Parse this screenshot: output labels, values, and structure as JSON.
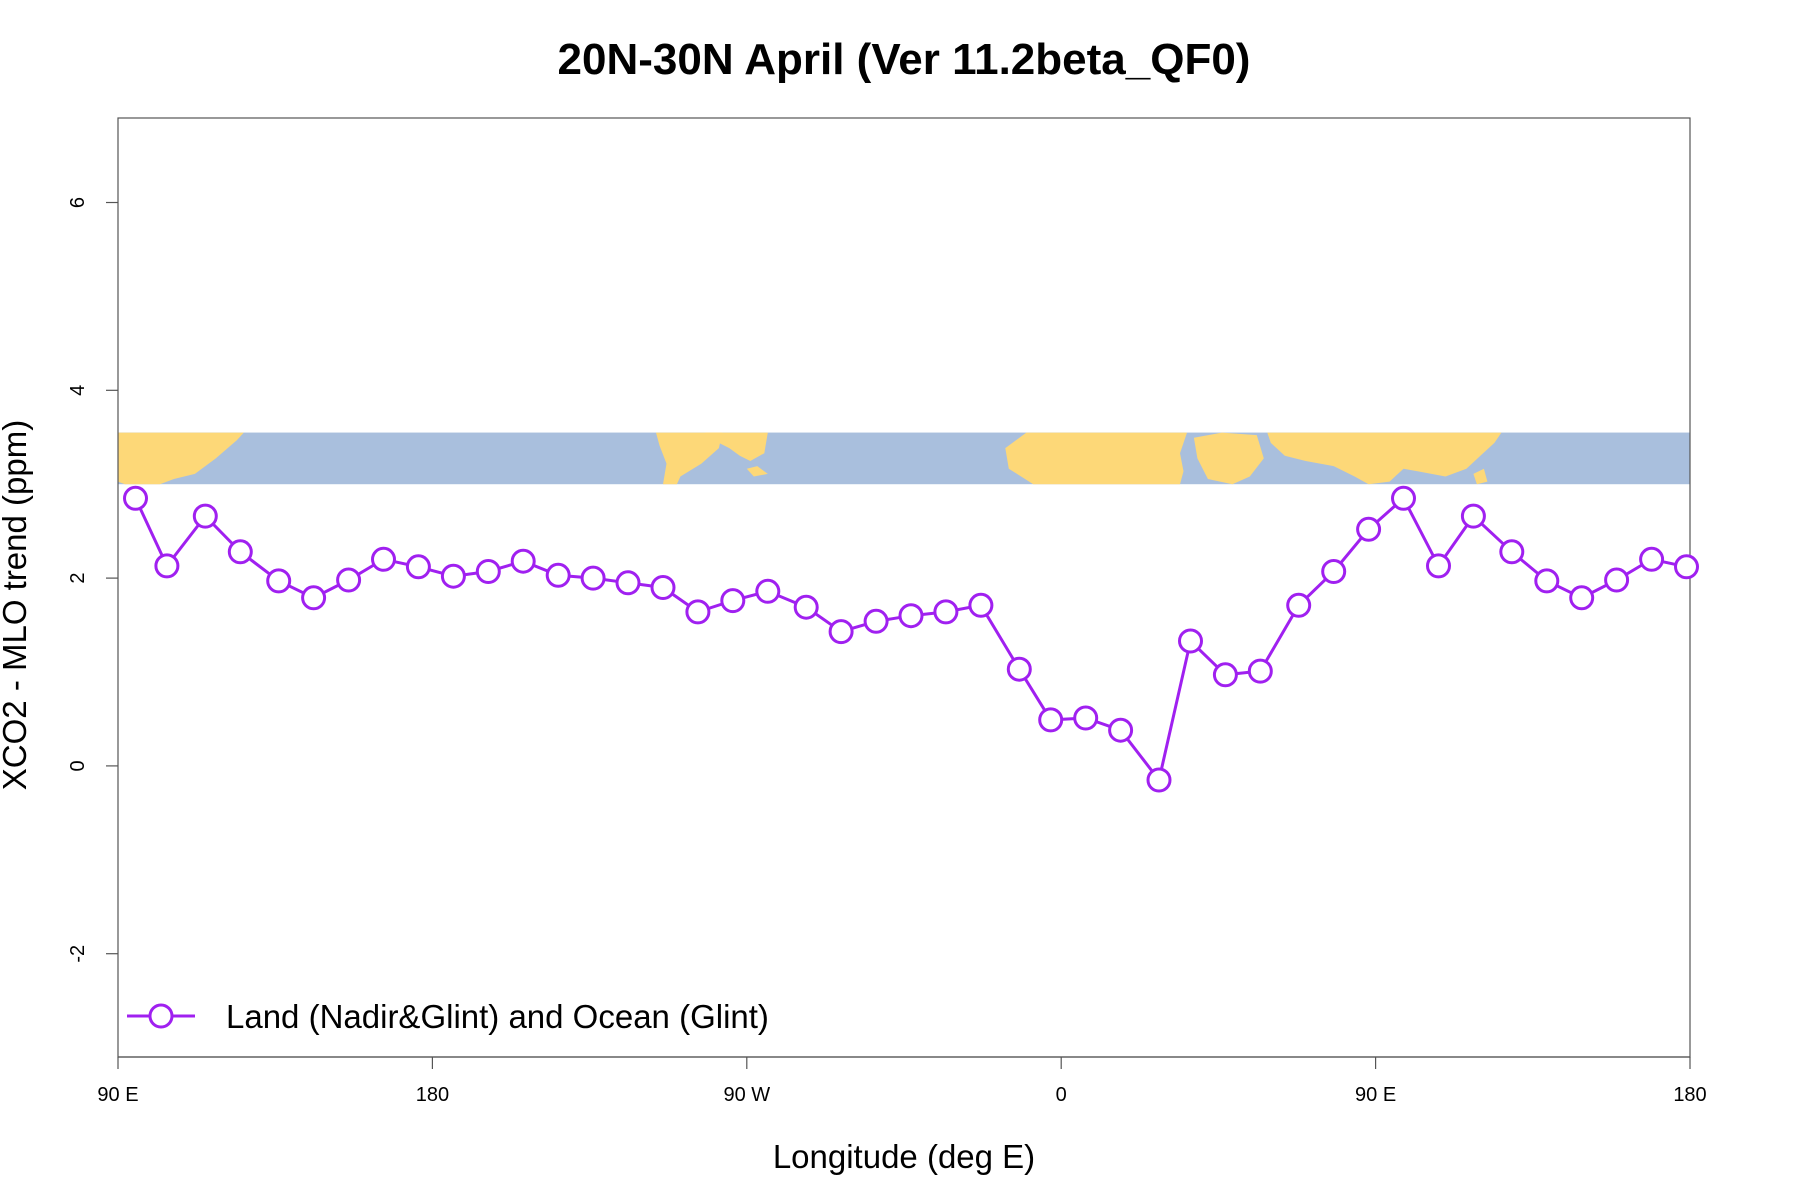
{
  "chart_data": {
    "type": "line",
    "title": "20N-30N April (Ver 11.2beta_QF0)",
    "xlabel": "Longitude (deg E)",
    "ylabel": "XCO2 - MLO trend (ppm)",
    "xlim": [
      90,
      540
    ],
    "ylim": [
      -3.1,
      6.9
    ],
    "x_ticks": [
      {
        "value": 90,
        "label": "90 E"
      },
      {
        "value": 180,
        "label": "180"
      },
      {
        "value": 270,
        "label": "90 W"
      },
      {
        "value": 360,
        "label": "0"
      },
      {
        "value": 450,
        "label": "90 E"
      },
      {
        "value": 540,
        "label": "180"
      }
    ],
    "y_ticks": [
      {
        "value": -2,
        "label": "-2"
      },
      {
        "value": 0,
        "label": "0"
      },
      {
        "value": 2,
        "label": "2"
      },
      {
        "value": 4,
        "label": "4"
      },
      {
        "value": 6,
        "label": "6"
      }
    ],
    "grid": false,
    "legend_position": "bottom-left",
    "map_strip": {
      "y_range": [
        3.0,
        3.55
      ],
      "ocean_color": "#a9bfdd",
      "land_color": "#fdd878"
    },
    "series": [
      {
        "name": "Land (Nadir&Glint) and Ocean (Glint)",
        "color": "#a020f0",
        "marker": "open-circle",
        "x": [
          95,
          104,
          115,
          125,
          136,
          146,
          156,
          166,
          176,
          186,
          196,
          206,
          216,
          226,
          236,
          246,
          256,
          266,
          276,
          287,
          297,
          307,
          317,
          327,
          337,
          348,
          357,
          367,
          377,
          388,
          397,
          407,
          417,
          428,
          438,
          448,
          458,
          468,
          478,
          489,
          499,
          509,
          519,
          529,
          539
        ],
        "values": [
          2.85,
          2.13,
          2.66,
          2.28,
          1.97,
          1.79,
          1.98,
          2.2,
          2.12,
          2.02,
          2.07,
          2.18,
          2.03,
          2.0,
          1.95,
          1.9,
          1.64,
          1.76,
          1.86,
          1.69,
          1.43,
          1.54,
          1.6,
          1.64,
          1.71,
          1.03,
          0.49,
          0.51,
          0.38,
          -0.15,
          1.33,
          0.97,
          1.01,
          1.71,
          2.07,
          2.52,
          2.85,
          2.13,
          2.66,
          2.28,
          1.97,
          1.79,
          1.98,
          2.2,
          2.12
        ]
      }
    ]
  }
}
